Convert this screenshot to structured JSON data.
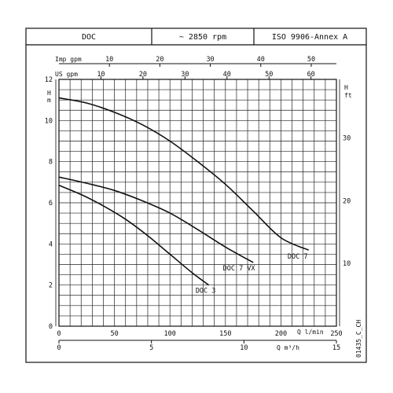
{
  "header": {
    "model": "DOC",
    "speed": "~ 2850 rpm",
    "standard": "ISO 9906-Annex A"
  },
  "axes": {
    "imp_gpm_label": "Imp gpm",
    "us_gpm_label": "US gpm",
    "h_m_label_top": "H",
    "h_m_label_bottom": "m",
    "h_ft_label_top": "H",
    "h_ft_label_bottom": "ft",
    "q_lmin_label": "Q l/min",
    "q_m3h_label": "Q m³/h",
    "imp_gpm_ticks": [
      "10",
      "20",
      "30",
      "40",
      "50"
    ],
    "us_gpm_ticks": [
      "10",
      "20",
      "30",
      "40",
      "50",
      "60"
    ],
    "h_m_ticks": [
      "0",
      "2",
      "4",
      "6",
      "8",
      "10",
      "12"
    ],
    "h_ft_ticks": [
      "10",
      "20",
      "30"
    ],
    "q_lmin_ticks": [
      "0",
      "50",
      "100",
      "150",
      "200",
      "250"
    ],
    "q_m3h_ticks": [
      "0",
      "5",
      "10",
      "15"
    ]
  },
  "figure_code": "01435_C_CH",
  "chart_data": {
    "type": "line",
    "xlabel": "Q l/min",
    "ylabel": "H m",
    "xlim": [
      0,
      250
    ],
    "ylim": [
      0,
      12
    ],
    "grid": true,
    "series": [
      {
        "name": "DOC 7",
        "x": [
          0,
          25,
          50,
          75,
          100,
          125,
          150,
          175,
          200,
          225
        ],
        "y": [
          11.1,
          10.85,
          10.4,
          9.8,
          9.0,
          8.0,
          6.9,
          5.6,
          4.3,
          3.7
        ]
      },
      {
        "name": "DOC 7 VX",
        "x": [
          0,
          25,
          50,
          75,
          100,
          125,
          150,
          175
        ],
        "y": [
          7.25,
          6.95,
          6.6,
          6.1,
          5.5,
          4.7,
          3.85,
          3.1
        ]
      },
      {
        "name": "DOC 3",
        "x": [
          0,
          20,
          40,
          60,
          80,
          100,
          120,
          135
        ],
        "y": [
          6.85,
          6.4,
          5.85,
          5.2,
          4.4,
          3.5,
          2.6,
          2.0
        ]
      }
    ]
  }
}
